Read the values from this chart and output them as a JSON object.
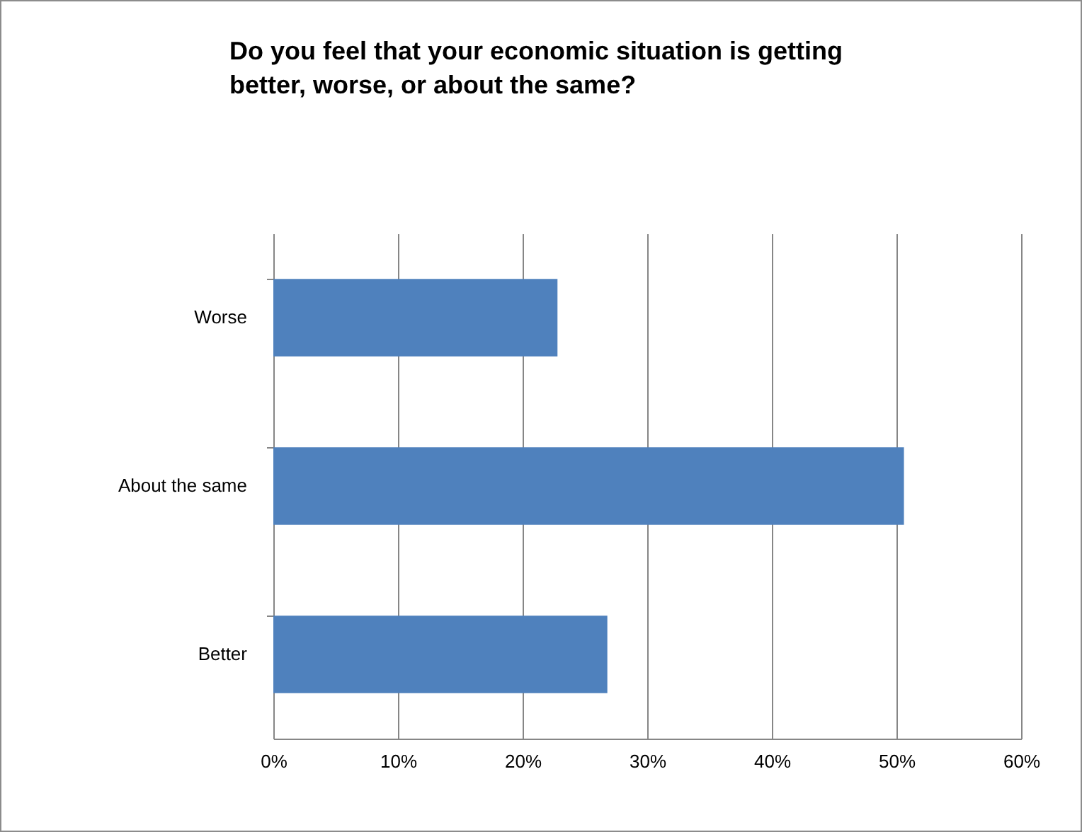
{
  "chart_data": {
    "type": "bar",
    "orientation": "horizontal",
    "title": "Do you feel that your economic situation is getting better, worse, or about the same?",
    "categories": [
      "Worse",
      "About the same",
      "Better"
    ],
    "values": [
      22.8,
      50.6,
      26.8
    ],
    "color": "#4f81bd",
    "xlim": [
      0,
      60
    ],
    "xticks": [
      {
        "value": 0,
        "label": "0%"
      },
      {
        "value": 10,
        "label": "10%"
      },
      {
        "value": 20,
        "label": "20%"
      },
      {
        "value": 30,
        "label": "30%"
      },
      {
        "value": 40,
        "label": "40%"
      },
      {
        "value": 50,
        "label": "50%"
      },
      {
        "value": 60,
        "label": "60%"
      }
    ],
    "grid": "x"
  }
}
